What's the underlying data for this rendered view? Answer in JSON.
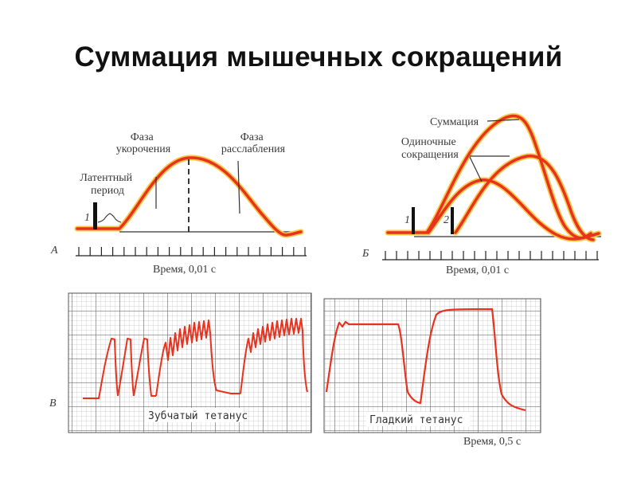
{
  "title": "Суммация мышечных сокращений",
  "panel_a": {
    "letter": "А",
    "stimulus_marker": "1",
    "latent_label": [
      "Латентный",
      "период"
    ],
    "shortening_label": [
      "Фаза",
      "укорочения"
    ],
    "relaxation_label": [
      "Фаза",
      "расслабления"
    ],
    "time_label": "Время, 0,01 с"
  },
  "panel_b": {
    "letter": "Б",
    "stimulus_markers": [
      "1",
      "2"
    ],
    "summation_label": "Суммация",
    "single_label": [
      "Одиночные",
      "сокращения"
    ],
    "time_label": "Время,  0,01 с"
  },
  "panel_c": {
    "letter": "В",
    "serrated_label": "Зубчатый тетанус",
    "smooth_label": "Гладкий тетанус",
    "time_label": "Время, 0,5 с"
  },
  "colors": {
    "trace": "#e8321e",
    "trace_glow": "#f7c84a",
    "grid_minor": "#bdbdbd",
    "grid_major": "#6e6e6e"
  }
}
